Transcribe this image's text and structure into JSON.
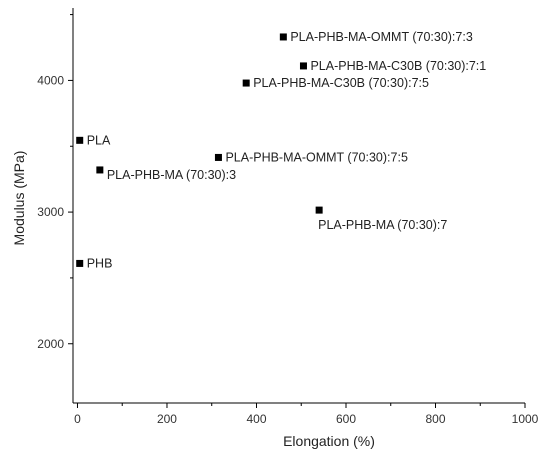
{
  "chart_data": {
    "type": "scatter",
    "xlabel": "Elongation (%)",
    "ylabel": "Modulus (MPa)",
    "xlim": [
      -10,
      1000
    ],
    "ylim": [
      1550,
      4550
    ],
    "x_ticks": [
      0,
      200,
      400,
      600,
      800,
      1000
    ],
    "y_ticks": [
      2000,
      3000,
      4000
    ],
    "grid": false,
    "marker": "square",
    "marker_color": "#000000",
    "points": [
      {
        "label": "PLA-PHB-MA-OMMT (70:30):7:3",
        "x": 460,
        "y": 4330,
        "label_side": "right"
      },
      {
        "label": "PLA-PHB-MA-C30B (70:30):7:1",
        "x": 505,
        "y": 4110,
        "label_side": "right"
      },
      {
        "label": "PLA-PHB-MA-C30B (70:30):7:5",
        "x": 377,
        "y": 3980,
        "label_side": "right"
      },
      {
        "label": "PLA",
        "x": 5,
        "y": 3545,
        "label_side": "right"
      },
      {
        "label": "PLA-PHB-MA-OMMT (70:30):7:5",
        "x": 315,
        "y": 3415,
        "label_side": "right"
      },
      {
        "label": "PLA-PHB-MA (70:30):3",
        "x": 50,
        "y": 3320,
        "label_side": "below-right"
      },
      {
        "label": "PLA-PHB-MA (70:30):7",
        "x": 540,
        "y": 3015,
        "label_side": "below"
      },
      {
        "label": "PHB",
        "x": 5,
        "y": 2610,
        "label_side": "right"
      }
    ]
  }
}
